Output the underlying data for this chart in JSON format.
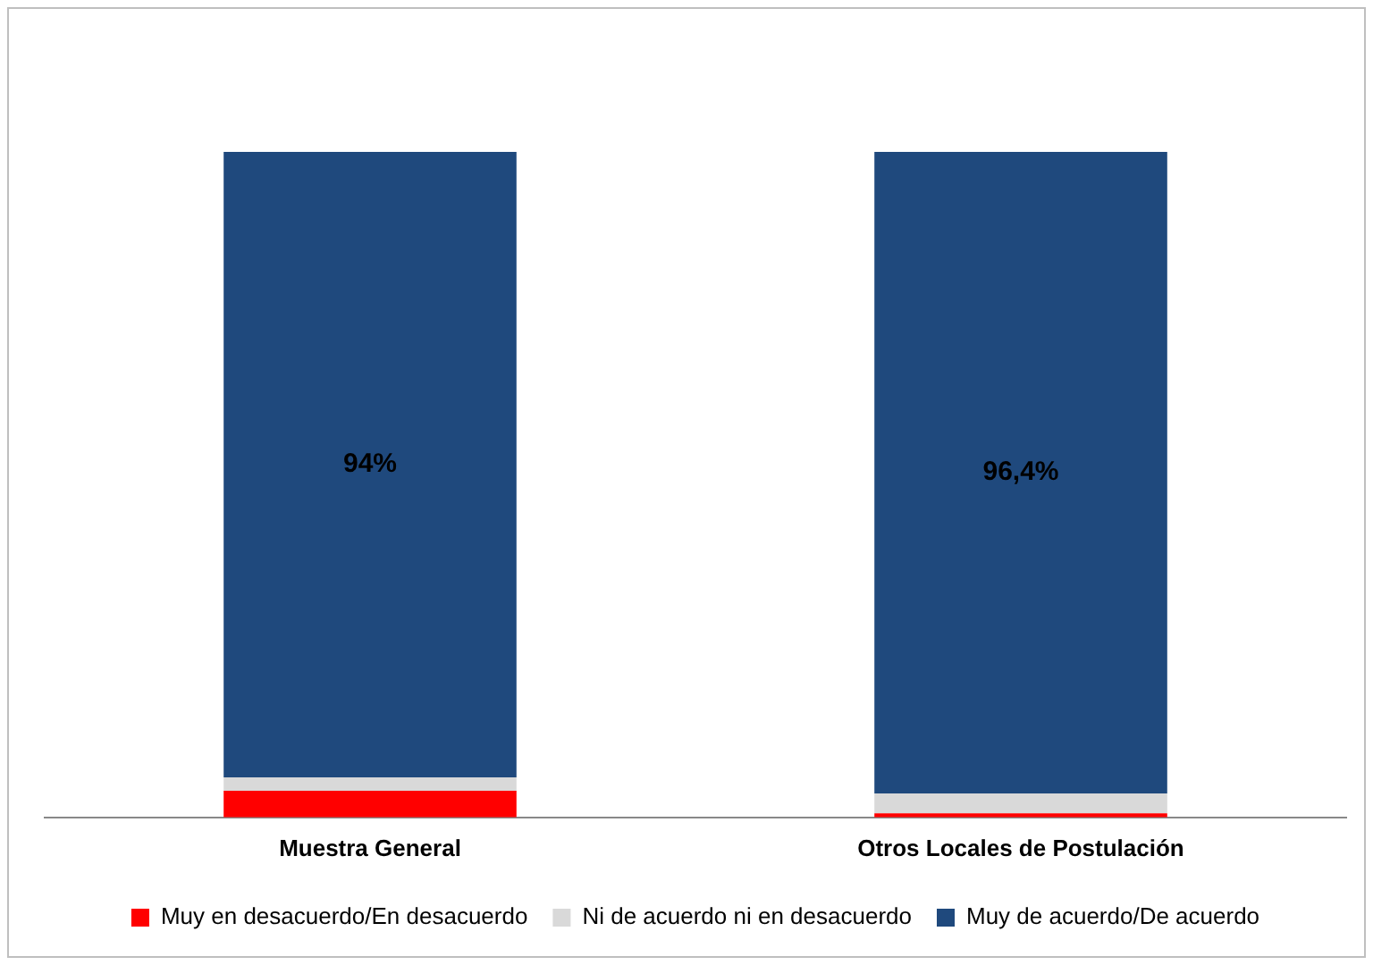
{
  "chart_data": {
    "type": "bar",
    "stacked": true,
    "categories": [
      "Muestra General",
      "Otros Locales de Postulación"
    ],
    "series": [
      {
        "name": "Muy en desacuerdo/En desacuerdo",
        "color": "#ff0000",
        "values": [
          4,
          0.6
        ]
      },
      {
        "name": "Ni de acuerdo ni en desacuerdo",
        "color": "#d9d9d9",
        "values": [
          2,
          3
        ]
      },
      {
        "name": "Muy de acuerdo/De acuerdo",
        "color": "#1f497d",
        "values": [
          94,
          96.4
        ],
        "value_labels": [
          "94%",
          "96,4%"
        ]
      }
    ],
    "ylim": [
      0,
      100
    ],
    "tick_labels": "x",
    "grid": false,
    "legend": "bottom"
  }
}
